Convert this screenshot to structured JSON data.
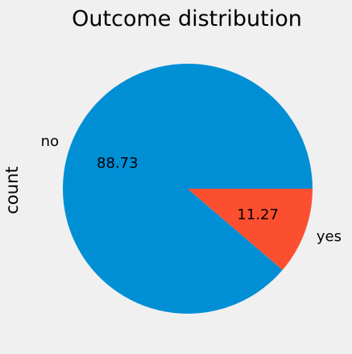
{
  "chart_data": {
    "type": "pie",
    "title": "Outcome distribution",
    "ylabel": "count",
    "categories": [
      "no",
      "yes"
    ],
    "values": [
      88.73,
      11.27
    ],
    "value_labels": [
      "88.73",
      "11.27"
    ],
    "colors": [
      "#008fd5",
      "#fc4f30"
    ],
    "start_angle_deg": 0,
    "direction": "counterclockwise",
    "background": "#f0f0f0"
  }
}
